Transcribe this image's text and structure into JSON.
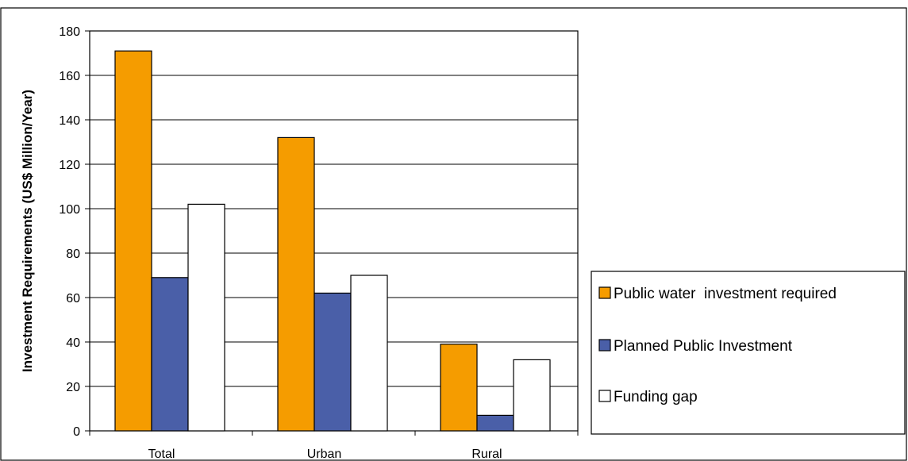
{
  "chart_data": {
    "type": "bar",
    "title": "",
    "xlabel": "",
    "ylabel": "Investment Requirements (US$ Million/Year)",
    "categories": [
      "Total",
      "Urban",
      "Rural"
    ],
    "series": [
      {
        "name": "Public water  investment required",
        "color": "#f59c00",
        "values": [
          171,
          132,
          39
        ]
      },
      {
        "name": "Planned Public Investment",
        "color": "#4a5fa8",
        "values": [
          69,
          62,
          7
        ]
      },
      {
        "name": "Funding gap",
        "color": "#ffffff",
        "values": [
          102,
          70,
          32
        ]
      }
    ],
    "ylim": [
      0,
      180
    ],
    "yticks": [
      "0",
      "20",
      "40",
      "60",
      "80",
      "100",
      "120",
      "140",
      "160",
      "180"
    ],
    "grid": true,
    "legend_position": "right"
  }
}
